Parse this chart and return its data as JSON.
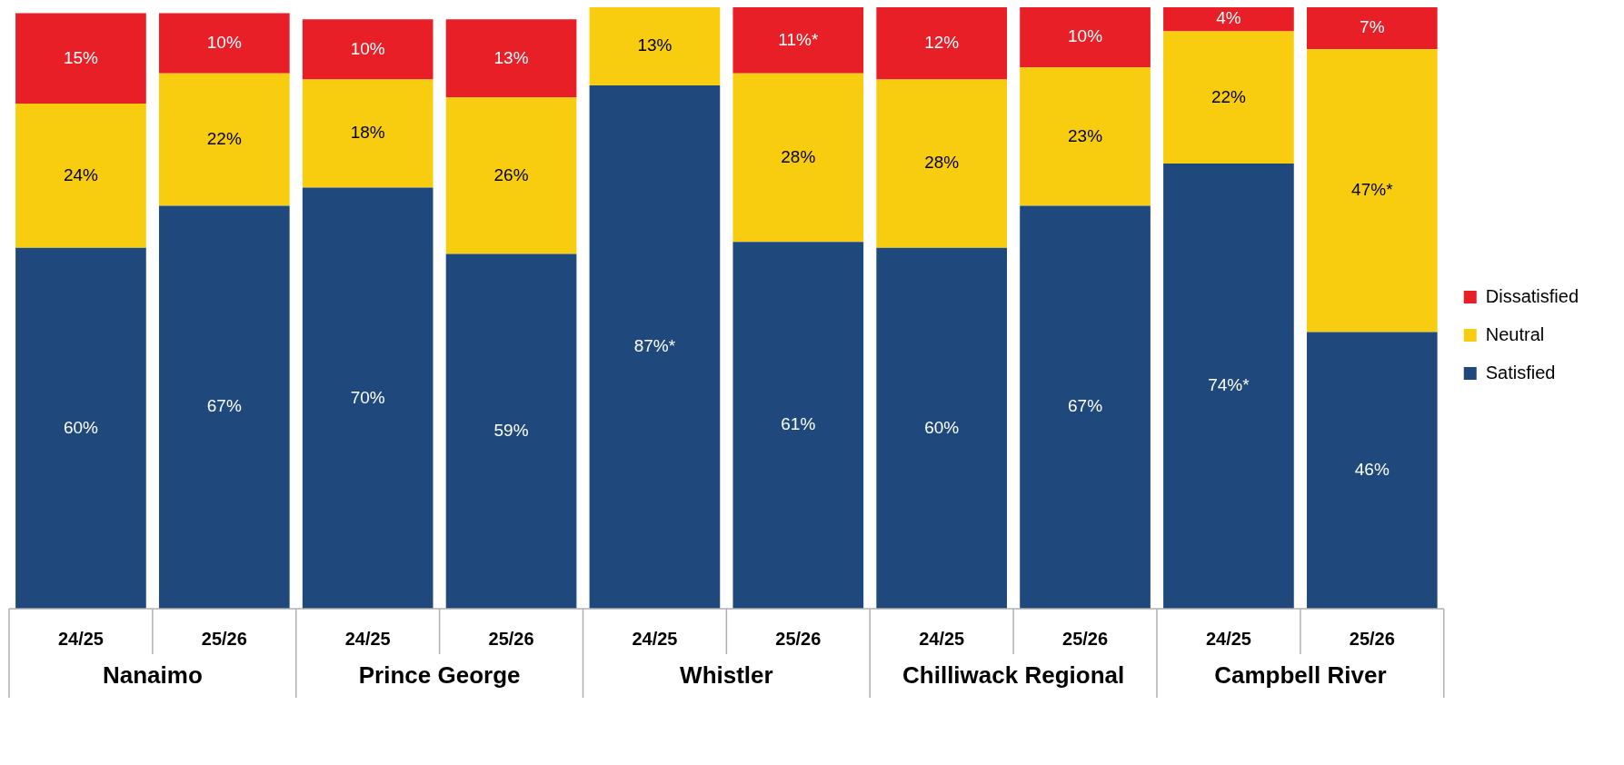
{
  "chart_data": {
    "type": "bar",
    "stacked": true,
    "categories": [
      "24/25",
      "25/26",
      "24/25",
      "25/26",
      "24/25",
      "25/26",
      "24/25",
      "25/26",
      "24/25",
      "25/26"
    ],
    "series": [
      {
        "name": "Satisfied",
        "color": "#1f497d",
        "values": [
          60,
          67,
          70,
          59,
          87,
          61,
          60,
          67,
          74,
          46
        ],
        "value_labels": [
          "60%",
          "67%",
          "70%",
          "59%",
          "87%*",
          "61%",
          "60%",
          "67%",
          "74%*",
          "46%"
        ]
      },
      {
        "name": "Neutral",
        "color": "#f8cd0f",
        "values": [
          24,
          22,
          18,
          26,
          13,
          28,
          28,
          23,
          22,
          47
        ],
        "value_labels": [
          "24%",
          "22%",
          "18%",
          "26%",
          "13%",
          "28%",
          "28%",
          "23%",
          "22%",
          "47%*"
        ]
      },
      {
        "name": "Dissatisfied",
        "color": "#e81f27",
        "values": [
          15,
          10,
          10,
          13,
          null,
          11,
          12,
          10,
          4,
          7
        ],
        "value_labels": [
          "15%",
          "10%",
          "10%",
          "13%",
          null,
          "11%*",
          "12%",
          "10%",
          "4%",
          "7%"
        ]
      }
    ],
    "ylim": [
      0,
      100
    ],
    "tick_labels": "x",
    "legend": "right",
    "annotations": [
      "Nanaimo",
      "Prince George",
      "Whistler",
      "Chilliwack Regional",
      "Campbell River"
    ]
  }
}
